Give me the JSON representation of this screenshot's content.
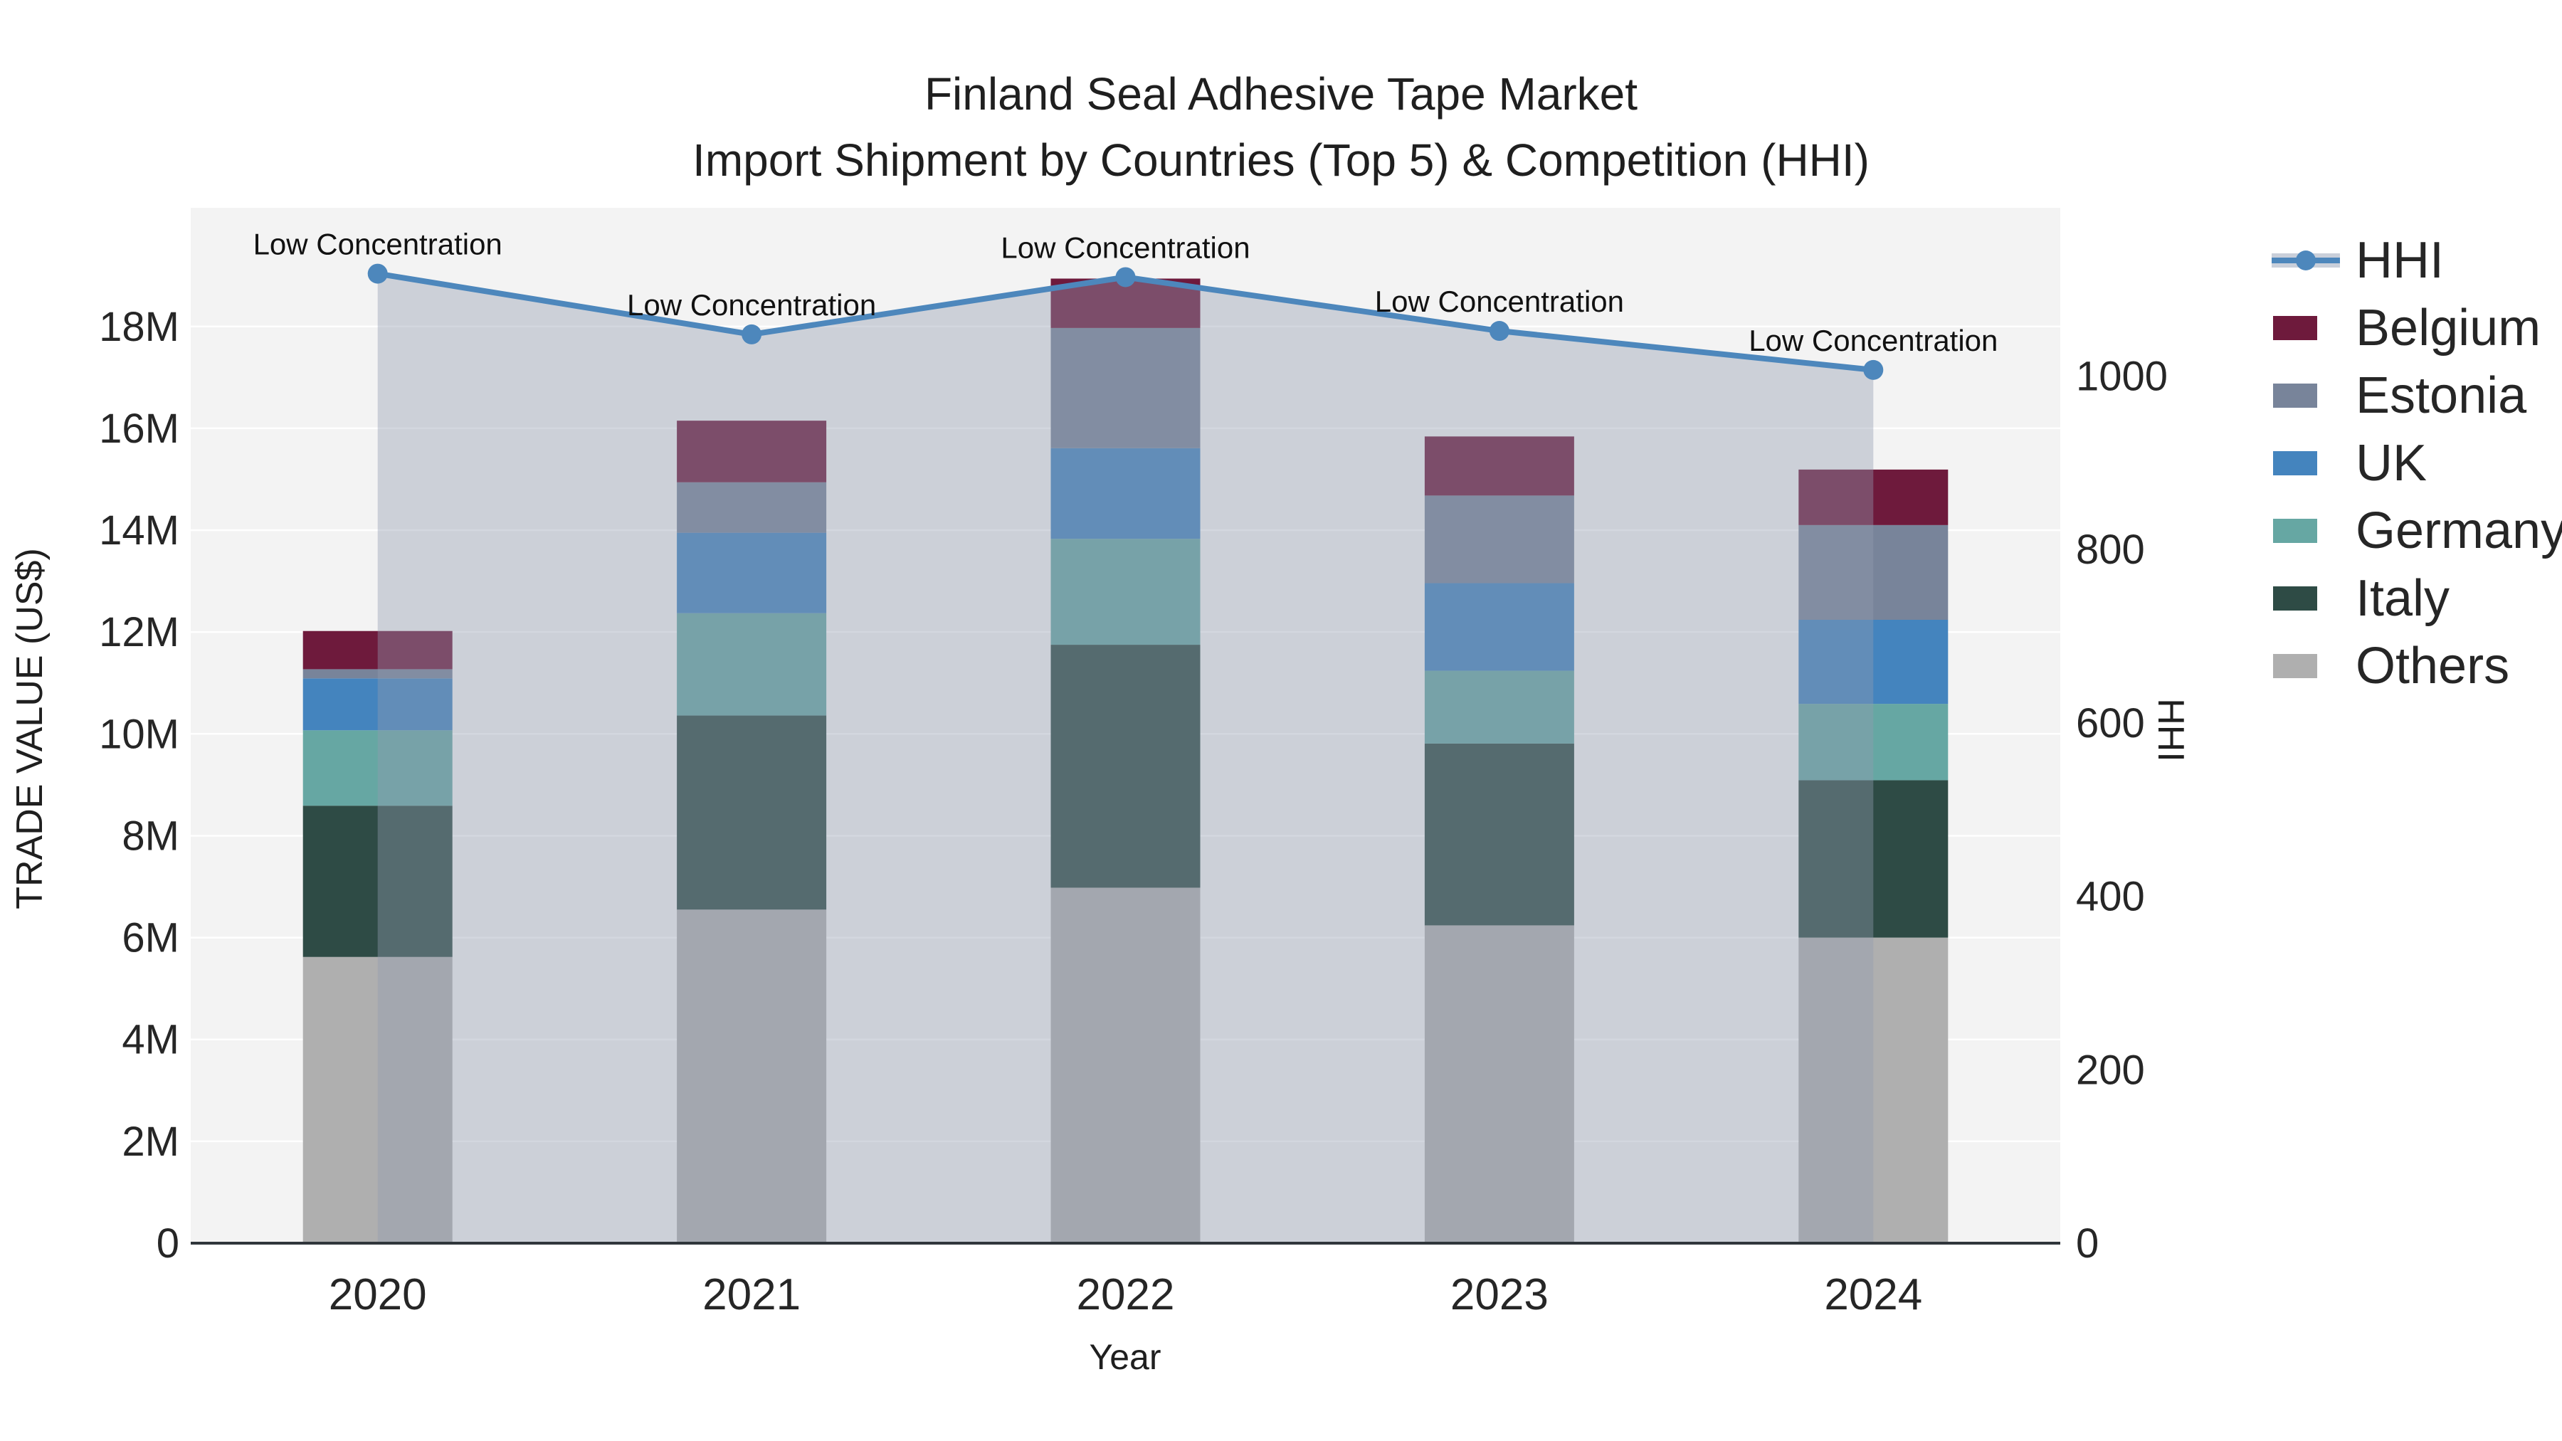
{
  "title": {
    "line1": "Finland Seal Adhesive Tape Market",
    "line2": "Import Shipment by Countries (Top 5) & Competition (HHI)"
  },
  "axes": {
    "y_left": {
      "title": "TRADE VALUE (US$)",
      "tick_labels": [
        "0",
        "2M",
        "4M",
        "6M",
        "8M",
        "10M",
        "12M",
        "14M",
        "16M",
        "18M"
      ],
      "tick_values": [
        0,
        2,
        4,
        6,
        8,
        10,
        12,
        14,
        16,
        18
      ],
      "range_millions": [
        0,
        20.33
      ]
    },
    "y_right": {
      "title": "HHI",
      "tick_labels": [
        "0",
        "200",
        "400",
        "600",
        "800",
        "1000"
      ],
      "tick_values": [
        0,
        200,
        400,
        600,
        800,
        1000
      ],
      "range": [
        0,
        1194
      ]
    },
    "x": {
      "title": "Year",
      "categories": [
        "2020",
        "2021",
        "2022",
        "2023",
        "2024"
      ]
    }
  },
  "chart_data": {
    "type": "bar+line",
    "subtype": "stacked-bars-with-secondary-axis-line-and-area",
    "categories": [
      "2020",
      "2021",
      "2022",
      "2023",
      "2024"
    ],
    "bar_value_unit": "millions USD",
    "series": [
      {
        "name": "Others",
        "color": "#AFAFAF",
        "values": [
          5.62,
          6.55,
          6.98,
          6.24,
          6.0
        ]
      },
      {
        "name": "Italy",
        "color": "#2E4B45",
        "values": [
          2.97,
          3.81,
          4.77,
          3.57,
          3.09
        ]
      },
      {
        "name": "Germany",
        "color": "#66A7A3",
        "values": [
          1.48,
          2.01,
          2.08,
          1.43,
          1.5
        ]
      },
      {
        "name": "UK",
        "color": "#4484BE",
        "values": [
          1.02,
          1.58,
          1.78,
          1.72,
          1.65
        ]
      },
      {
        "name": "Estonia",
        "color": "#78849A",
        "values": [
          0.18,
          0.99,
          2.36,
          1.72,
          1.86
        ]
      },
      {
        "name": "Belgium",
        "color": "#6E1A3C",
        "values": [
          0.75,
          1.21,
          0.97,
          1.16,
          1.09
        ]
      }
    ],
    "bar_totals_millions": [
      12.02,
      16.15,
      18.94,
      15.84,
      15.19
    ],
    "line_series": {
      "name": "HHI",
      "axis": "right",
      "color": "#4D87BC",
      "area_fill": "rgba(144,155,176,0.40)",
      "values": [
        1118,
        1048,
        1114,
        1052,
        1007
      ]
    },
    "annotations": [
      {
        "text": "Low Concentration",
        "category": "2020"
      },
      {
        "text": "Low Concentration",
        "category": "2021"
      },
      {
        "text": "Low Concentration",
        "category": "2022"
      },
      {
        "text": "Low Concentration",
        "category": "2023"
      },
      {
        "text": "Low Concentration",
        "category": "2024"
      }
    ],
    "layout_hints": {
      "grid": "horizontal-white-lines",
      "legend_position": "right-top",
      "plot_background": "#F3F3F3",
      "axis_line_color": "#30363B"
    }
  },
  "legend": {
    "items": [
      {
        "label": "HHI",
        "type": "line-marker",
        "color": "#4D87BC"
      },
      {
        "label": "Belgium",
        "type": "swatch",
        "color": "#6E1A3C"
      },
      {
        "label": "Estonia",
        "type": "swatch",
        "color": "#78849A"
      },
      {
        "label": "UK",
        "type": "swatch",
        "color": "#4484BE"
      },
      {
        "label": "Germany",
        "type": "swatch",
        "color": "#66A7A3"
      },
      {
        "label": "Italy",
        "type": "swatch",
        "color": "#2E4B45"
      },
      {
        "label": "Others",
        "type": "swatch",
        "color": "#AFAFAF"
      }
    ]
  }
}
